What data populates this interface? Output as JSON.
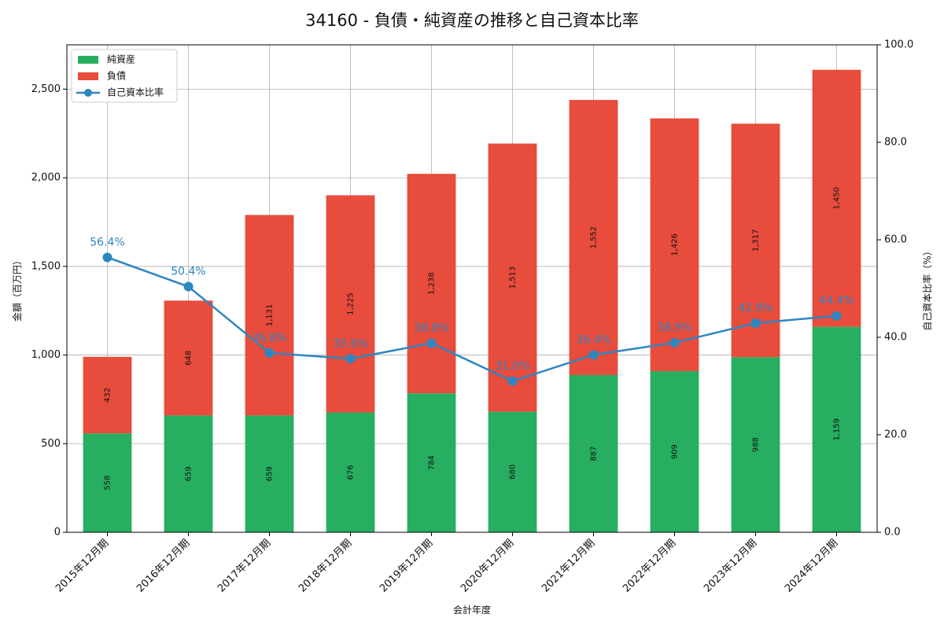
{
  "chart_data": {
    "type": "bar",
    "title": "34160 - 負債・純資産の推移と自己資本比率",
    "xlabel": "会計年度",
    "ylabel": "金額（百万円）",
    "y2label": "自己資本比率（%）",
    "ylim": [
      0,
      2750
    ],
    "y2lim": [
      0,
      100
    ],
    "yticks": [
      0,
      500,
      1000,
      1500,
      2000,
      2500
    ],
    "yticklabels": [
      "0",
      "500",
      "1,000",
      "1,500",
      "2,000",
      "2,500"
    ],
    "y2ticks": [
      0,
      20,
      40,
      60,
      80,
      100
    ],
    "y2ticklabels": [
      "0.0",
      "20.0",
      "40.0",
      "60.0",
      "80.0",
      "100.0"
    ],
    "grid": true,
    "legend_position": "top-left",
    "categories": [
      "2015年12月期",
      "2016年12月期",
      "2017年12月期",
      "2018年12月期",
      "2019年12月期",
      "2020年12月期",
      "2021年12月期",
      "2022年12月期",
      "2023年12月期",
      "2024年12月期"
    ],
    "series": [
      {
        "name": "純資産",
        "kind": "bar",
        "color": "#27ae60",
        "values": [
          558,
          659,
          659,
          676,
          784,
          680,
          887,
          909,
          988,
          1159
        ],
        "labels": [
          "558",
          "659",
          "659",
          "676",
          "784",
          "680",
          "887",
          "909",
          "988",
          "1,159"
        ]
      },
      {
        "name": "負債",
        "kind": "bar",
        "color": "#e74c3c",
        "values": [
          432,
          648,
          1131,
          1225,
          1238,
          1513,
          1552,
          1426,
          1317,
          1450
        ],
        "labels": [
          "432",
          "648",
          "1,131",
          "1,225",
          "1,238",
          "1,513",
          "1,552",
          "1,426",
          "1,317",
          "1,450"
        ]
      },
      {
        "name": "自己資本比率",
        "kind": "line",
        "axis": "right",
        "color": "#2e86c1",
        "values": [
          56.4,
          50.4,
          36.8,
          35.6,
          38.8,
          31.0,
          36.4,
          38.9,
          42.9,
          44.4
        ],
        "labels": [
          "56.4%",
          "50.4%",
          "36.8%",
          "35.6%",
          "38.8%",
          "31.0%",
          "36.4%",
          "38.9%",
          "42.9%",
          "44.4%"
        ]
      }
    ]
  }
}
